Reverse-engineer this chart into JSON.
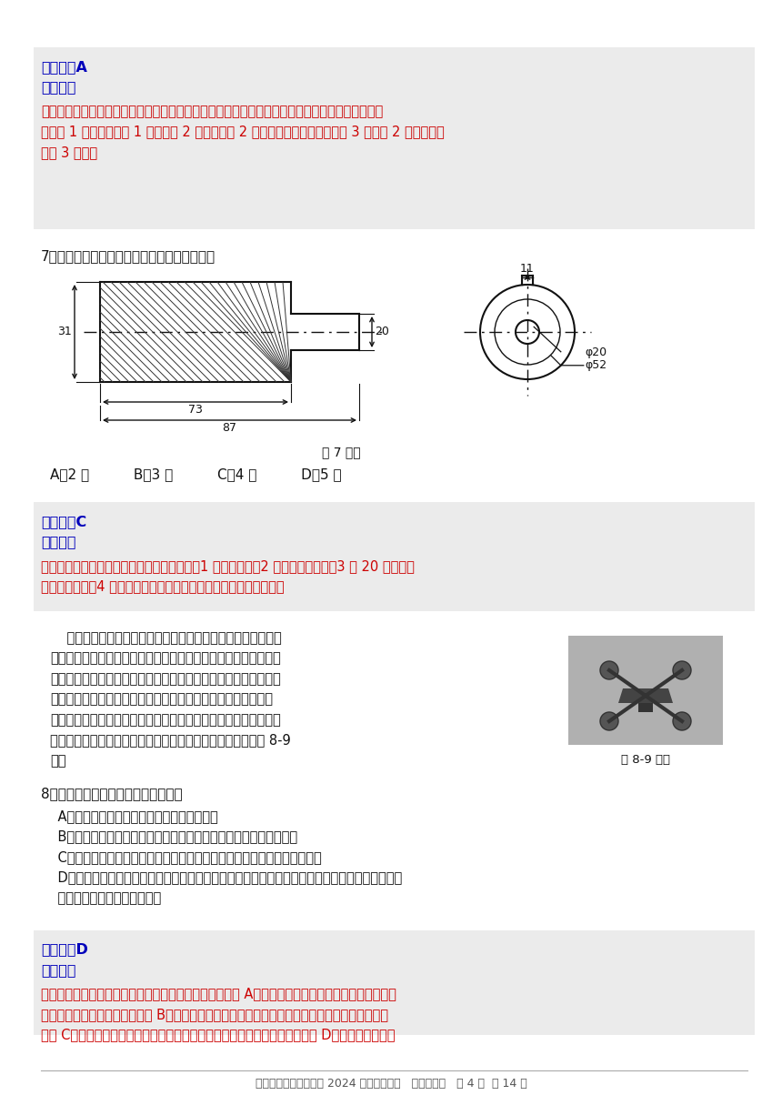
{
  "bg_color": "#ffffff",
  "gray_bg": "#ebebeb",
  "blue_color": "#0000bb",
  "red_color": "#cc0000",
  "black_color": "#111111",
  "footer_text": "浙江省新阵地教育联盟 2024 届第二次联考   技术试题卷   第 4 页  共 14 页",
  "s1_answer": "【答案】A",
  "s1_jiex": "【解析】",
  "s1_l1": "本题考查结构中构件的受力形式。该连杆机构中，电机顺时针转动到图示位置时，与电机轴刚连接",
  "s1_l2": "的连杆 1 受弯曲，连杆 1 推动连杆 2 运动，连杆 2 受压，在图示位置时，连杆 3 被连杆 2 推着转动，",
  "s1_l3": "连杆 3 受拉；",
  "q7_text": "7．如图是某零件的视图，图中存在的错误共有",
  "q7_fig_label": "第 7 题图",
  "q7_choices": "A．2 处          B．3 处          C．4 处          D．5 处",
  "s2_answer": "【答案】C",
  "s2_jiex": "【解析】",
  "s2_l1": "本题考查图样分析。图样中主视图为剖视图，1 处应为实线；2 处应该标注直径；3 处 20 应该标注",
  "s2_l2": "在尺寸线左侧；4 处尺寸线的箭头应该抵到最里面小圆的外边延处。",
  "dp1": "    无人机可以实现精准悬停、自动避障、自动返航等功能。其中",
  "dp2": "精准悬停子系统工作原理：当无人机受到外界气流影响，检测装置",
  "dp3": "检测到机身有升高或者降低的趋势时，控制单元就调节马达的功率",
  "dp4": "进行反方向运动补偿，使无人机功态达到预设值；低电量自动返",
  "dp5": "航子系统工作原理：系统会在检测到电池剩余电量低于设定电量时",
  "dp6": "进行自动返航，防止无人机没电坠落造成事故。根据描述完成 8-9",
  "dp7": "题。",
  "fig89": "第 8-9 题图",
  "q8": "8．关于无人机，以下说法不正确的是",
  "q8A": "    A．气流的变化是无人机系统优化的约束条件",
  "q8B": "    B．检测装置的精度影响着无人机悬停的效果，体现了系统的整体性",
  "q8C": "    C．随着使用时间的增长，电池的蓄电能力有所下降，体现了系统的动态性",
  "q8D1": "    D．在无人机机翼材料选择时，既要高强度、高韧性，又要具有高模量、低翘曲、高流动的特性，",
  "q8D2": "    体现了系统分析的整体性原则",
  "s3_answer": "【答案】D",
  "s3_jiex": "【解析】",
  "s3_l1": "本题考查系统的特性、系统优化及系统分析的原则。选项 A，气流的变化属于不可人为调节的因素，",
  "s3_l2": "属于系统优化的约束条件；选项 B，考察系统的整体性，部分对整体功能的影响属于整体性范畴；",
  "s3_l3": "选项 C，系统的要素老化，系统的功能也随之变弱，属于系统的动态性；选项 D，系统分析的整体"
}
